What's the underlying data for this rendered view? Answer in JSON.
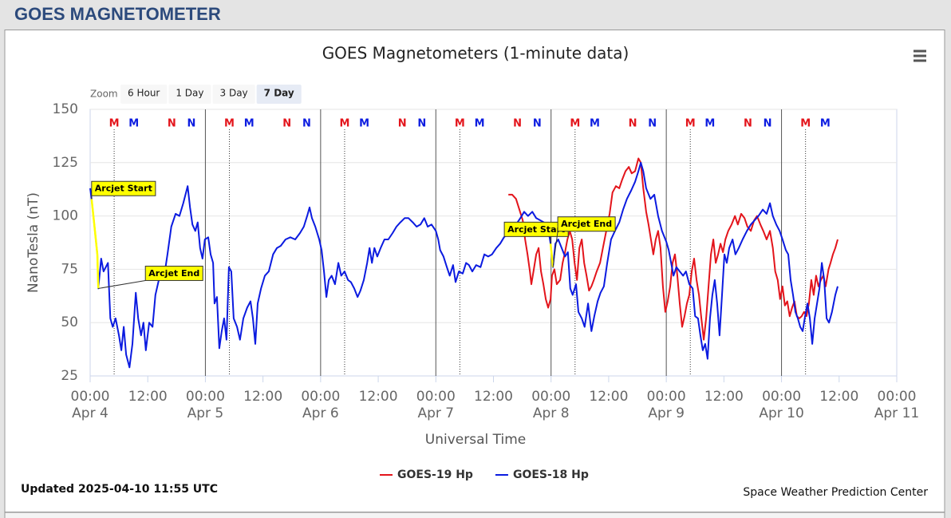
{
  "header": {
    "title": "GOES MAGNETOMETER"
  },
  "chart_data": {
    "type": "line",
    "title": "GOES Magnetometers (1-minute data)",
    "xlabel": "Universal Time",
    "ylabel": "NanoTesla (nT)",
    "updated": "Updated 2025-04-10 11:55 UTC",
    "credit": "Space Weather Prediction Center",
    "zoom": {
      "label": "Zoom",
      "buttons": [
        "6 Hour",
        "1 Day",
        "3 Day",
        "7 Day"
      ],
      "selected": 3
    },
    "xlim": [
      0,
      168
    ],
    "ylim": [
      25,
      150
    ],
    "grid": true,
    "yticks": [
      25,
      50,
      75,
      100,
      125,
      150
    ],
    "xticks": [
      {
        "value": 0,
        "label": "00:00"
      },
      {
        "value": 12,
        "label": "12:00"
      },
      {
        "value": 24,
        "label": "00:00"
      },
      {
        "value": 36,
        "label": "12:00"
      },
      {
        "value": 48,
        "label": "00:00"
      },
      {
        "value": 60,
        "label": "12:00"
      },
      {
        "value": 72,
        "label": "00:00"
      },
      {
        "value": 84,
        "label": "12:00"
      },
      {
        "value": 96,
        "label": "00:00"
      },
      {
        "value": 108,
        "label": "12:00"
      },
      {
        "value": 120,
        "label": "00:00"
      },
      {
        "value": 132,
        "label": "12:00"
      },
      {
        "value": 144,
        "label": "00:00"
      },
      {
        "value": 156,
        "label": "12:00"
      },
      {
        "value": 168,
        "label": "00:00"
      }
    ],
    "xdate_ticks": [
      {
        "value": 0,
        "label": "Apr 4"
      },
      {
        "value": 24,
        "label": "Apr 5"
      },
      {
        "value": 48,
        "label": "Apr 6"
      },
      {
        "value": 72,
        "label": "Apr 7"
      },
      {
        "value": 96,
        "label": "Apr 8"
      },
      {
        "value": 120,
        "label": "Apr 9"
      },
      {
        "value": 144,
        "label": "Apr 10"
      },
      {
        "value": 168,
        "label": "Apr 11"
      }
    ],
    "series": [
      {
        "name": "GOES-19 Hp",
        "color": "#e3141b",
        "x": [
          87.1,
          87.9,
          88.7,
          89.4,
          90.1,
          90.6,
          91.1,
          91.6,
          91.9,
          92.4,
          92.9,
          93.4,
          93.9,
          94.4,
          94.9,
          95.4,
          95.9,
          96.2,
          96.7,
          97.2,
          97.9,
          98.4,
          98.9,
          99.4,
          99.9,
          100.4,
          100.9,
          101.4,
          101.9,
          102.4,
          102.9,
          103.4,
          103.9,
          104.4,
          104.9,
          105.5,
          106.2,
          106.8,
          107.5,
          108.2,
          108.8,
          109.5,
          110.2,
          110.8,
          111.5,
          112.2,
          112.8,
          113.5,
          114.2,
          114.7,
          115.2,
          115.8,
          116.3,
          116.8,
          117.3,
          117.8,
          118.3,
          118.8,
          119.3,
          119.8,
          120.3,
          120.8,
          121.3,
          121.8,
          122.3,
          122.8,
          123.3,
          123.8,
          124.3,
          124.8,
          125.3,
          125.8,
          126.3,
          126.8,
          127.3,
          127.8,
          128.3,
          128.8,
          129.3,
          129.8,
          130.3,
          130.8,
          131.3,
          131.8,
          132.3,
          132.9,
          133.6,
          134.3,
          134.9,
          135.6,
          136.3,
          136.9,
          137.6,
          138.3,
          138.9,
          139.6,
          140.2,
          140.9,
          141.6,
          142.2,
          142.7,
          143.2,
          143.7,
          144.2,
          144.7,
          145.2,
          145.7,
          146.2,
          146.7,
          147.2,
          147.7,
          148.2,
          148.7,
          149.2,
          149.7,
          150.2,
          150.7,
          151.2,
          151.7,
          152.2,
          152.7,
          153.2,
          153.8,
          154.2,
          154.7,
          155.2,
          155.7
        ],
        "values": [
          110,
          110,
          108,
          103,
          98,
          89,
          82,
          74,
          68,
          75,
          82,
          85,
          74,
          68,
          61,
          57,
          61,
          72,
          75,
          68,
          70,
          78,
          83,
          89,
          93,
          89,
          78,
          70,
          85,
          89,
          78,
          72,
          65,
          67,
          70,
          74,
          78,
          85,
          93,
          101,
          111,
          114,
          113,
          117,
          121,
          123,
          120,
          121,
          127,
          125,
          113,
          102,
          96,
          89,
          82,
          89,
          93,
          85,
          67,
          55,
          60,
          67,
          78,
          82,
          72,
          59,
          48,
          53,
          59,
          63,
          74,
          80,
          70,
          63,
          52,
          42,
          52,
          67,
          82,
          89,
          78,
          82,
          87,
          83,
          89,
          93,
          96,
          100,
          96,
          101,
          99,
          95,
          93,
          98,
          100,
          96,
          93,
          89,
          93,
          85,
          74,
          70,
          61,
          67,
          58,
          60,
          53,
          57,
          60,
          53,
          52,
          53,
          55,
          53,
          59,
          70,
          63,
          72,
          67,
          70,
          72,
          67,
          75,
          78,
          82,
          85,
          89
        ],
        "markers": {
          "labels": [
            "M",
            "N",
            "M",
            "N",
            "M",
            "N",
            "M",
            "N",
            "M",
            "N",
            "M",
            "N",
            "M"
          ],
          "x": [
            5,
            17,
            29,
            41,
            53,
            65,
            77,
            89,
            101,
            113,
            125,
            137,
            149
          ]
        }
      },
      {
        "name": "GOES-18 Hp",
        "color": "#0b1be0",
        "x": [
          0,
          0.3,
          1.0,
          1.5,
          1.7,
          2.3,
          2.8,
          3.7,
          4.2,
          4.7,
          5.3,
          6.0,
          6.5,
          7.0,
          7.5,
          8.2,
          8.8,
          9.5,
          10.0,
          10.6,
          11.1,
          11.6,
          12.3,
          13.0,
          13.6,
          14.5,
          15.3,
          16.1,
          16.9,
          17.8,
          18.6,
          19.4,
          20.3,
          20.8,
          21.3,
          21.9,
          22.4,
          22.9,
          23.4,
          23.9,
          24.6,
          25.1,
          25.6,
          25.9,
          26.4,
          26.9,
          27.4,
          27.9,
          28.4,
          28.9,
          29.4,
          29.9,
          30.6,
          31.2,
          31.9,
          32.7,
          33.4,
          33.9,
          34.4,
          34.9,
          35.6,
          36.4,
          37.2,
          38.1,
          38.9,
          39.7,
          40.7,
          41.7,
          42.7,
          43.7,
          44.5,
          45.2,
          45.7,
          46.2,
          46.9,
          47.7,
          48.2,
          48.7,
          49.2,
          49.7,
          50.3,
          51.0,
          51.7,
          52.3,
          53.0,
          53.7,
          54.3,
          55.0,
          55.7,
          56.3,
          57.0,
          57.7,
          58.2,
          58.7,
          59.2,
          59.8,
          60.5,
          61.3,
          62.1,
          63.0,
          63.8,
          64.6,
          65.5,
          66.3,
          67.2,
          68.0,
          68.8,
          69.6,
          70.3,
          71.1,
          72.0,
          72.5,
          72.9,
          73.6,
          74.3,
          74.9,
          75.6,
          76.1,
          76.8,
          77.6,
          78.3,
          78.9,
          79.6,
          80.4,
          81.3,
          82.1,
          82.9,
          83.7,
          84.6,
          85.4,
          86.2,
          87.1,
          87.9,
          88.7,
          89.6,
          90.4,
          91.2,
          92.1,
          92.9,
          93.7,
          94.5,
          95.2,
          95.7,
          95.9,
          96.4,
          96.9,
          97.5,
          98.2,
          98.9,
          99.5,
          100.0,
          100.5,
          101.2,
          101.7,
          102.4,
          103.0,
          103.7,
          104.4,
          105.0,
          105.7,
          106.3,
          107.0,
          107.7,
          108.5,
          109.3,
          110.2,
          111.0,
          111.8,
          112.7,
          113.5,
          114.2,
          114.7,
          115.2,
          115.8,
          116.7,
          117.5,
          118.3,
          119.1,
          120.0,
          120.5,
          121.0,
          121.5,
          122.1,
          122.8,
          123.5,
          124.1,
          124.8,
          125.5,
          126.0,
          126.6,
          127.1,
          127.6,
          128.1,
          128.6,
          129.1,
          129.6,
          130.1,
          130.6,
          131.1,
          131.6,
          132.1,
          132.6,
          133.1,
          133.8,
          134.4,
          135.1,
          135.9,
          136.8,
          137.6,
          138.4,
          139.2,
          140.1,
          140.9,
          141.6,
          142.2,
          142.9,
          143.6,
          144.2,
          144.9,
          145.4,
          145.9,
          146.4,
          146.9,
          147.4,
          147.9,
          148.4,
          148.9,
          149.4,
          149.9,
          150.4,
          150.9,
          151.4,
          151.9,
          152.4,
          152.9,
          153.4,
          153.9,
          154.5,
          155.2,
          155.7
        ],
        "values": [
          113,
          108,
          93,
          82,
          66,
          80,
          74,
          78,
          52,
          48,
          52,
          44,
          37,
          48,
          35,
          29,
          40,
          64,
          52,
          44,
          50,
          37,
          50,
          48,
          63,
          72,
          70,
          82,
          95,
          101,
          100,
          106,
          114,
          104,
          96,
          93,
          97,
          85,
          80,
          89,
          90,
          82,
          78,
          59,
          62,
          38,
          46,
          52,
          42,
          76,
          74,
          52,
          48,
          42,
          52,
          57,
          60,
          52,
          40,
          59,
          66,
          72,
          74,
          82,
          85,
          86,
          89,
          90,
          89,
          92,
          95,
          100,
          104,
          99,
          95,
          89,
          84,
          74,
          62,
          70,
          72,
          68,
          78,
          72,
          74,
          70,
          69,
          66,
          62,
          65,
          70,
          78,
          85,
          78,
          85,
          81,
          85,
          89,
          89,
          92,
          95,
          97,
          99,
          99,
          97,
          95,
          96,
          99,
          95,
          96,
          93,
          89,
          84,
          81,
          76,
          72,
          77,
          69,
          74,
          73,
          78,
          77,
          74,
          77,
          76,
          82,
          81,
          82,
          85,
          87,
          90,
          92,
          96,
          96,
          99,
          102,
          100,
          102,
          99,
          98,
          97,
          93,
          90,
          87,
          76,
          87,
          89,
          85,
          81,
          83,
          66,
          63,
          68,
          55,
          52,
          48,
          59,
          46,
          53,
          60,
          64,
          67,
          78,
          89,
          93,
          97,
          103,
          108,
          112,
          116,
          121,
          125,
          121,
          113,
          108,
          110,
          100,
          93,
          88,
          84,
          78,
          72,
          76,
          74,
          72,
          74,
          68,
          66,
          53,
          52,
          44,
          37,
          40,
          33,
          52,
          63,
          70,
          59,
          44,
          63,
          82,
          78,
          85,
          89,
          82,
          85,
          89,
          93,
          96,
          98,
          100,
          103,
          101,
          106,
          100,
          96,
          93,
          89,
          84,
          82,
          70,
          63,
          55,
          52,
          48,
          46,
          53,
          59,
          52,
          40,
          52,
          59,
          66,
          78,
          70,
          52,
          50,
          55,
          63,
          67
        ],
        "highlights": [
          [
            0.3,
            1.7
          ],
          [
            95.9,
            96.4
          ]
        ],
        "highlight_color": "#ffff00",
        "markers": {
          "labels": [
            "M",
            "N",
            "M",
            "N",
            "M",
            "N",
            "M",
            "N",
            "M",
            "N",
            "M",
            "N",
            "M"
          ],
          "x": [
            9.1,
            21.1,
            33.1,
            45.1,
            57.1,
            69.1,
            81.1,
            93.1,
            105.1,
            117.1,
            129.1,
            141.1,
            153.1
          ]
        }
      }
    ],
    "annotations": [
      {
        "text": "Arcjet Start",
        "x": 0.3,
        "y": 108
      },
      {
        "text": "Arcjet End",
        "x": 1.7,
        "y": 66
      },
      {
        "text": "Arcjet Start",
        "x": 95.9,
        "y": 87
      },
      {
        "text": "Arcjet End",
        "x": 96.4,
        "y": 76
      }
    ]
  }
}
